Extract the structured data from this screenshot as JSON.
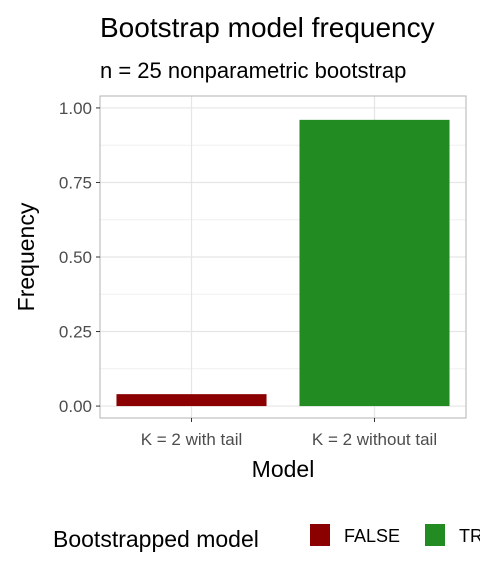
{
  "chart_data": {
    "type": "bar",
    "title": "Bootstrap model frequency",
    "subtitle": "n = 25 nonparametric bootstrap",
    "xlabel": "Model",
    "ylabel": "Frequency",
    "ylim": [
      -0.04,
      1.04
    ],
    "yticks": [
      0.0,
      0.25,
      0.5,
      0.75,
      1.0
    ],
    "ytick_labels": [
      "0.00",
      "0.25",
      "0.50",
      "0.75",
      "1.00"
    ],
    "categories": [
      "K = 2 with tail",
      "K = 2 without tail"
    ],
    "values": [
      0.04,
      0.96
    ],
    "bar_groups": [
      "FALSE",
      "TRUE"
    ],
    "grid": true,
    "legend": {
      "title": "Bootstrapped model",
      "placement": "bottom",
      "entries": [
        {
          "label": "FALSE",
          "color": "#8b0000"
        },
        {
          "label": "TRUE",
          "color": "#228b22"
        }
      ]
    },
    "colors": {
      "FALSE": "#8b0000",
      "TRUE": "#228b22",
      "grid": "#e5e5e5",
      "panel_border": "#b3b3b3"
    }
  }
}
